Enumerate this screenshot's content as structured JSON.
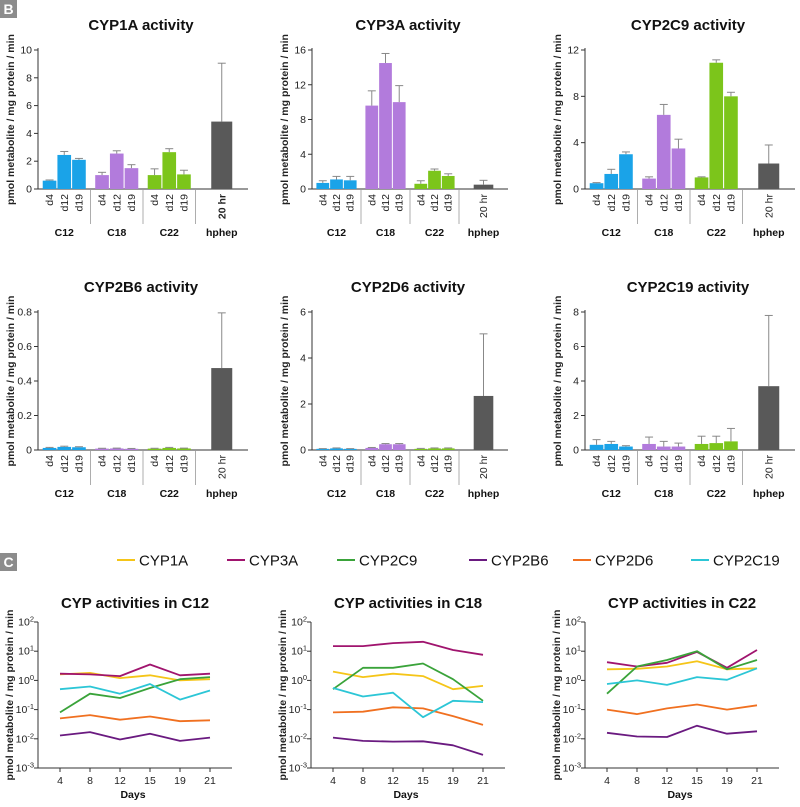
{
  "panels": {
    "B": {
      "label": "B"
    },
    "C": {
      "label": "C"
    }
  },
  "colors": {
    "c12": "#1aa3e8",
    "c18": "#b27bdc",
    "c22": "#7cc51b",
    "hphep": "#595959",
    "cyp1a": "#f5c518",
    "cyp3a": "#a0146e",
    "cyp2c9": "#3aa33a",
    "cyp2b6": "#6a1a80",
    "cyp2d6": "#f07020",
    "cyp2c19": "#2cc6d6",
    "panel_label_bg": "#8c8c8c"
  },
  "chart_data": [
    {
      "type": "bar",
      "title": "CYP1A activity",
      "ylabel": "pmol metabolite / mg protein / min",
      "ylim": [
        0,
        10
      ],
      "yticks": [
        0,
        2,
        4,
        6,
        8,
        10
      ],
      "groups": [
        {
          "name": "C12",
          "bold": true,
          "categories": [
            "d4",
            "d12",
            "d19"
          ],
          "values": [
            0.6,
            2.45,
            2.1
          ],
          "errors": [
            0.05,
            0.25,
            0.1
          ],
          "color": "c12"
        },
        {
          "name": "C18",
          "bold": false,
          "categories": [
            "d4",
            "d12",
            "d19"
          ],
          "values": [
            1.0,
            2.55,
            1.5
          ],
          "errors": [
            0.2,
            0.2,
            0.25
          ],
          "color": "c18"
        },
        {
          "name": "C22",
          "bold": false,
          "categories": [
            "d4",
            "d12",
            "d19"
          ],
          "values": [
            1.0,
            2.65,
            1.05
          ],
          "errors": [
            0.45,
            0.25,
            0.3
          ],
          "color": "c22"
        },
        {
          "name": "hphep",
          "bold": false,
          "categories": [
            "20 hr"
          ],
          "values": [
            4.85
          ],
          "errors": [
            4.2
          ],
          "color": "hphep",
          "catBold": true
        }
      ]
    },
    {
      "type": "bar",
      "title": "CYP3A activity",
      "ylabel": "pmol metabolite / mg protein / min",
      "ylim": [
        0,
        16
      ],
      "yticks": [
        0,
        4,
        8,
        12,
        16
      ],
      "groups": [
        {
          "name": "C12",
          "bold": false,
          "categories": [
            "d4",
            "d12",
            "d19"
          ],
          "values": [
            0.7,
            1.1,
            1.0
          ],
          "errors": [
            0.25,
            0.35,
            0.45
          ],
          "color": "c12"
        },
        {
          "name": "C18",
          "bold": false,
          "categories": [
            "d4",
            "d12",
            "d19"
          ],
          "values": [
            9.6,
            14.5,
            10.0
          ],
          "errors": [
            1.7,
            1.1,
            1.9
          ],
          "color": "c18"
        },
        {
          "name": "C22",
          "bold": false,
          "categories": [
            "d4",
            "d12",
            "d19"
          ],
          "values": [
            0.6,
            2.1,
            1.5
          ],
          "errors": [
            0.35,
            0.2,
            0.25
          ],
          "color": "c22"
        },
        {
          "name": "hphep",
          "bold": false,
          "categories": [
            "20 hr"
          ],
          "values": [
            0.5
          ],
          "errors": [
            0.5
          ],
          "color": "hphep"
        }
      ]
    },
    {
      "type": "bar",
      "title": "CYP2C9 activity",
      "ylabel": "pmol metabolite / mg protein / min",
      "ylim": [
        0,
        12
      ],
      "yticks": [
        0,
        4,
        8,
        12
      ],
      "groups": [
        {
          "name": "C12",
          "bold": false,
          "categories": [
            "d4",
            "d12",
            "d19"
          ],
          "values": [
            0.5,
            1.3,
            3.0
          ],
          "errors": [
            0.05,
            0.4,
            0.2
          ],
          "color": "c12"
        },
        {
          "name": "C18",
          "bold": false,
          "categories": [
            "d4",
            "d12",
            "d19"
          ],
          "values": [
            0.9,
            6.4,
            3.5
          ],
          "errors": [
            0.15,
            0.9,
            0.8
          ],
          "color": "c18"
        },
        {
          "name": "C22",
          "bold": false,
          "categories": [
            "d4",
            "d12",
            "d19"
          ],
          "values": [
            1.0,
            10.9,
            8.0
          ],
          "errors": [
            0.05,
            0.25,
            0.35
          ],
          "color": "c22"
        },
        {
          "name": "hphep",
          "bold": false,
          "categories": [
            "20 hr"
          ],
          "values": [
            2.2
          ],
          "errors": [
            1.6
          ],
          "color": "hphep"
        }
      ]
    },
    {
      "type": "bar",
      "title": "CYP2B6 activity",
      "ylabel": "pmol metabolite / mg protein / min",
      "ylim": [
        0,
        0.8
      ],
      "yticks": [
        0,
        0.2,
        0.4,
        0.6,
        0.8
      ],
      "groups": [
        {
          "name": "C12",
          "bold": false,
          "categories": [
            "d4",
            "d12",
            "d19"
          ],
          "values": [
            0.012,
            0.018,
            0.016
          ],
          "errors": [
            0.003,
            0.004,
            0.003
          ],
          "color": "c12"
        },
        {
          "name": "C18",
          "bold": false,
          "categories": [
            "d4",
            "d12",
            "d19"
          ],
          "values": [
            0.008,
            0.009,
            0.007
          ],
          "errors": [
            0.002,
            0.002,
            0.002
          ],
          "color": "c18"
        },
        {
          "name": "C22",
          "bold": false,
          "categories": [
            "d4",
            "d12",
            "d19"
          ],
          "values": [
            0.008,
            0.012,
            0.009
          ],
          "errors": [
            0.002,
            0.003,
            0.002
          ],
          "color": "c22"
        },
        {
          "name": "hphep",
          "bold": false,
          "categories": [
            "20 hr"
          ],
          "values": [
            0.475
          ],
          "errors": [
            0.32
          ],
          "color": "hphep"
        }
      ]
    },
    {
      "type": "bar",
      "title": "CYP2D6 activity",
      "ylabel": "pmol metabolite / mg protein / min",
      "ylim": [
        0,
        6
      ],
      "yticks": [
        0,
        2,
        4,
        6
      ],
      "groups": [
        {
          "name": "C12",
          "bold": false,
          "categories": [
            "d4",
            "d12",
            "d19"
          ],
          "values": [
            0.05,
            0.07,
            0.05
          ],
          "errors": [
            0.01,
            0.02,
            0.01
          ],
          "color": "c12"
        },
        {
          "name": "C18",
          "bold": false,
          "categories": [
            "d4",
            "d12",
            "d19"
          ],
          "values": [
            0.09,
            0.25,
            0.25
          ],
          "errors": [
            0.02,
            0.03,
            0.03
          ],
          "color": "c18"
        },
        {
          "name": "C22",
          "bold": false,
          "categories": [
            "d4",
            "d12",
            "d19"
          ],
          "values": [
            0.05,
            0.07,
            0.07
          ],
          "errors": [
            0.02,
            0.02,
            0.02
          ],
          "color": "c22"
        },
        {
          "name": "hphep",
          "bold": false,
          "categories": [
            "20 hr"
          ],
          "values": [
            2.35
          ],
          "errors": [
            2.7
          ],
          "color": "hphep"
        }
      ]
    },
    {
      "type": "bar",
      "title": "CYP2C19 activity",
      "ylabel": "pmol metabolite / mg protein / min",
      "ylim": [
        0,
        8
      ],
      "yticks": [
        0,
        2,
        4,
        6,
        8
      ],
      "groups": [
        {
          "name": "C12",
          "bold": false,
          "categories": [
            "d4",
            "d12",
            "d19"
          ],
          "values": [
            0.3,
            0.35,
            0.2
          ],
          "errors": [
            0.3,
            0.15,
            0.05
          ],
          "color": "c12"
        },
        {
          "name": "C18",
          "bold": false,
          "categories": [
            "d4",
            "d12",
            "d19"
          ],
          "values": [
            0.35,
            0.2,
            0.2
          ],
          "errors": [
            0.4,
            0.3,
            0.2
          ],
          "color": "c18"
        },
        {
          "name": "C22",
          "bold": false,
          "categories": [
            "d4",
            "d12",
            "d19"
          ],
          "values": [
            0.35,
            0.4,
            0.5
          ],
          "errors": [
            0.45,
            0.4,
            0.75
          ],
          "color": "c22"
        },
        {
          "name": "hphep",
          "bold": false,
          "categories": [
            "20 hr"
          ],
          "values": [
            3.7
          ],
          "errors": [
            4.1
          ],
          "color": "hphep"
        }
      ]
    },
    {
      "type": "line",
      "title": "CYP activities in C12",
      "xlabel": "Days",
      "ylabel": "pmol metabolite / mg protein / min",
      "yscale": "log",
      "ylim_exp": [
        -3,
        2
      ],
      "x": [
        4,
        8,
        12,
        15,
        19,
        21
      ],
      "series": [
        {
          "name": "CYP1A",
          "color": "cyp1a",
          "values": [
            1.6,
            1.8,
            1.2,
            1.5,
            1.0,
            1.1
          ]
        },
        {
          "name": "CYP3A",
          "color": "cyp3a",
          "values": [
            1.7,
            1.6,
            1.4,
            3.5,
            1.5,
            1.7
          ]
        },
        {
          "name": "CYP2C9",
          "color": "cyp2c9",
          "values": [
            0.08,
            0.35,
            0.25,
            0.55,
            1.1,
            1.3
          ]
        },
        {
          "name": "CYP2B6",
          "color": "cyp2b6",
          "values": [
            0.013,
            0.017,
            0.0095,
            0.015,
            0.0085,
            0.011
          ]
        },
        {
          "name": "CYP2D6",
          "color": "cyp2d6",
          "values": [
            0.05,
            0.065,
            0.045,
            0.058,
            0.04,
            0.043
          ]
        },
        {
          "name": "CYP2C19",
          "color": "cyp2c19",
          "values": [
            0.5,
            0.62,
            0.35,
            0.75,
            0.22,
            0.45
          ]
        }
      ]
    },
    {
      "type": "line",
      "title": "CYP activities in C18",
      "xlabel": "Days",
      "ylabel": "pmol metabolite / mg protein / min",
      "yscale": "log",
      "ylim_exp": [
        -3,
        2
      ],
      "x": [
        4,
        8,
        12,
        15,
        19,
        21
      ],
      "series": [
        {
          "name": "CYP1A",
          "color": "cyp1a",
          "values": [
            2.0,
            1.3,
            1.7,
            1.4,
            0.5,
            0.65
          ]
        },
        {
          "name": "CYP3A",
          "color": "cyp3a",
          "values": [
            15,
            15,
            19,
            21,
            11,
            7.5
          ]
        },
        {
          "name": "CYP2C9",
          "color": "cyp2c9",
          "values": [
            0.5,
            2.7,
            2.7,
            3.8,
            1.1,
            0.2
          ]
        },
        {
          "name": "CYP2B6",
          "color": "cyp2b6",
          "values": [
            0.011,
            0.0085,
            0.008,
            0.0082,
            0.006,
            0.0028
          ]
        },
        {
          "name": "CYP2D6",
          "color": "cyp2d6",
          "values": [
            0.08,
            0.085,
            0.12,
            0.11,
            0.06,
            0.03
          ]
        },
        {
          "name": "CYP2C19",
          "color": "cyp2c19",
          "values": [
            0.55,
            0.28,
            0.38,
            0.055,
            0.2,
            0.18
          ]
        }
      ]
    },
    {
      "type": "line",
      "title": "CYP activities in C22",
      "xlabel": "Days",
      "ylabel": "pmol metabolite / mg protein / min",
      "yscale": "log",
      "ylim_exp": [
        -3,
        2
      ],
      "x": [
        4,
        8,
        12,
        15,
        19,
        21
      ],
      "series": [
        {
          "name": "CYP1A",
          "color": "cyp1a",
          "values": [
            2.4,
            2.5,
            3.0,
            4.5,
            2.4,
            2.6
          ]
        },
        {
          "name": "CYP3A",
          "color": "cyp3a",
          "values": [
            4.2,
            3.0,
            4.0,
            9.5,
            2.7,
            11
          ]
        },
        {
          "name": "CYP2C9",
          "color": "cyp2c9",
          "values": [
            0.35,
            3.0,
            5.0,
            10,
            2.4,
            5.0
          ]
        },
        {
          "name": "CYP2B6",
          "color": "cyp2b6",
          "values": [
            0.016,
            0.012,
            0.0115,
            0.028,
            0.015,
            0.018
          ]
        },
        {
          "name": "CYP2D6",
          "color": "cyp2d6",
          "values": [
            0.1,
            0.07,
            0.11,
            0.15,
            0.1,
            0.14
          ]
        },
        {
          "name": "CYP2C19",
          "color": "cyp2c19",
          "values": [
            0.75,
            1.0,
            0.7,
            1.3,
            1.05,
            2.6
          ]
        }
      ]
    }
  ]
}
